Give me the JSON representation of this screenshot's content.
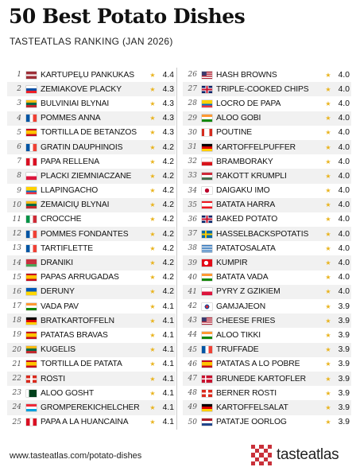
{
  "header": {
    "title": "50 Best Potato Dishes",
    "subtitle": "TASTEATLAS RANKING (JAN 2026)"
  },
  "footer": {
    "url": "www.tasteatlas.com/potato-dishes",
    "brand": "tasteatlas"
  },
  "ranking": [
    {
      "rank": "1",
      "name": "KARTUPEĻU PANKŪKAS",
      "score": "4.4",
      "flag": "latvia"
    },
    {
      "rank": "2",
      "name": "ZEMIAKOVÉ PLACKY",
      "score": "4.3",
      "flag": "slovakia"
    },
    {
      "rank": "3",
      "name": "BULVINIAI BLYNAI",
      "score": "4.3",
      "flag": "lithuania"
    },
    {
      "rank": "4",
      "name": "POMMES ANNA",
      "score": "4.3",
      "flag": "france"
    },
    {
      "rank": "5",
      "name": "TORTILLA DE BETANZOS",
      "score": "4.3",
      "flag": "spain"
    },
    {
      "rank": "6",
      "name": "GRATIN DAUPHINOIS",
      "score": "4.2",
      "flag": "france"
    },
    {
      "rank": "7",
      "name": "PAPA RELLENA",
      "score": "4.2",
      "flag": "peru"
    },
    {
      "rank": "8",
      "name": "PLACKI ZIEMNIACZANE",
      "score": "4.2",
      "flag": "poland"
    },
    {
      "rank": "9",
      "name": "LLAPINGACHO",
      "score": "4.2",
      "flag": "ecuador"
    },
    {
      "rank": "10",
      "name": "ŽEMAIČIŲ BLYNAI",
      "score": "4.2",
      "flag": "lithuania"
    },
    {
      "rank": "11",
      "name": "CROCCHÈ",
      "score": "4.2",
      "flag": "italy"
    },
    {
      "rank": "12",
      "name": "POMMES FONDANTES",
      "score": "4.2",
      "flag": "france"
    },
    {
      "rank": "13",
      "name": "TARTIFLETTE",
      "score": "4.2",
      "flag": "france"
    },
    {
      "rank": "14",
      "name": "DRANIKI",
      "score": "4.2",
      "flag": "belarus"
    },
    {
      "rank": "15",
      "name": "PAPAS ARRUGADAS",
      "score": "4.2",
      "flag": "spain"
    },
    {
      "rank": "16",
      "name": "DERUNY",
      "score": "4.2",
      "flag": "ukraine"
    },
    {
      "rank": "17",
      "name": "VADA PAV",
      "score": "4.1",
      "flag": "india"
    },
    {
      "rank": "18",
      "name": "BRATKARTOFFELN",
      "score": "4.1",
      "flag": "germany"
    },
    {
      "rank": "19",
      "name": "PATATAS BRAVAS",
      "score": "4.1",
      "flag": "spain"
    },
    {
      "rank": "20",
      "name": "KUGELIS",
      "score": "4.1",
      "flag": "lithuania"
    },
    {
      "rank": "21",
      "name": "TORTILLA DE PATATA",
      "score": "4.1",
      "flag": "spain"
    },
    {
      "rank": "22",
      "name": "RÖSTI",
      "score": "4.1",
      "flag": "switzerland"
    },
    {
      "rank": "23",
      "name": "ALOO GOSHT",
      "score": "4.1",
      "flag": "pakistan"
    },
    {
      "rank": "24",
      "name": "GROMPEREKICHELCHER",
      "score": "4.1",
      "flag": "luxembourg"
    },
    {
      "rank": "25",
      "name": "PAPA A LA HUANCAÍNA",
      "score": "4.1",
      "flag": "peru"
    },
    {
      "rank": "26",
      "name": "HASH BROWNS",
      "score": "4.0",
      "flag": "usa"
    },
    {
      "rank": "27",
      "name": "TRIPLE-COOKED CHIPS",
      "score": "4.0",
      "flag": "uk"
    },
    {
      "rank": "28",
      "name": "LOCRO DE PAPA",
      "score": "4.0",
      "flag": "ecuador"
    },
    {
      "rank": "29",
      "name": "ALOO GOBI",
      "score": "4.0",
      "flag": "india"
    },
    {
      "rank": "30",
      "name": "POUTINE",
      "score": "4.0",
      "flag": "canada"
    },
    {
      "rank": "31",
      "name": "KARTOFFELPUFFER",
      "score": "4.0",
      "flag": "germany"
    },
    {
      "rank": "32",
      "name": "BRAMBORÁKY",
      "score": "4.0",
      "flag": "czech"
    },
    {
      "rank": "33",
      "name": "RAKOTT KRUMPLI",
      "score": "4.0",
      "flag": "hungary"
    },
    {
      "rank": "34",
      "name": "DAIGAKU IMO",
      "score": "4.0",
      "flag": "japan"
    },
    {
      "rank": "35",
      "name": "BATATA HARRA",
      "score": "4.0",
      "flag": "lebanon"
    },
    {
      "rank": "36",
      "name": "BAKED POTATO",
      "score": "4.0",
      "flag": "uk"
    },
    {
      "rank": "37",
      "name": "HASSELBACKSPOTATIS",
      "score": "4.0",
      "flag": "sweden"
    },
    {
      "rank": "38",
      "name": "PATATOSALATA",
      "score": "4.0",
      "flag": "greece"
    },
    {
      "rank": "39",
      "name": "KUMPIR",
      "score": "4.0",
      "flag": "turkey"
    },
    {
      "rank": "40",
      "name": "BATATA VADA",
      "score": "4.0",
      "flag": "india"
    },
    {
      "rank": "41",
      "name": "PYRY Z GZIKIEM",
      "score": "4.0",
      "flag": "poland"
    },
    {
      "rank": "42",
      "name": "GAMJAJEON",
      "score": "3.9",
      "flag": "korea"
    },
    {
      "rank": "43",
      "name": "CHEESE FRIES",
      "score": "3.9",
      "flag": "usa"
    },
    {
      "rank": "44",
      "name": "ALOO TIKKI",
      "score": "3.9",
      "flag": "india"
    },
    {
      "rank": "45",
      "name": "TRUFFADE",
      "score": "3.9",
      "flag": "france"
    },
    {
      "rank": "46",
      "name": "PATATAS A LO POBRE",
      "score": "3.9",
      "flag": "spain"
    },
    {
      "rank": "47",
      "name": "BRUNEDE KARTOFLER",
      "score": "3.9",
      "flag": "denmark"
    },
    {
      "rank": "48",
      "name": "BERNER RÖSTI",
      "score": "3.9",
      "flag": "switzerland"
    },
    {
      "rank": "49",
      "name": "KARTOFFELSALAT",
      "score": "3.9",
      "flag": "germany"
    },
    {
      "rank": "50",
      "name": "PATATJE OORLOG",
      "score": "3.9",
      "flag": "netherlands"
    }
  ]
}
